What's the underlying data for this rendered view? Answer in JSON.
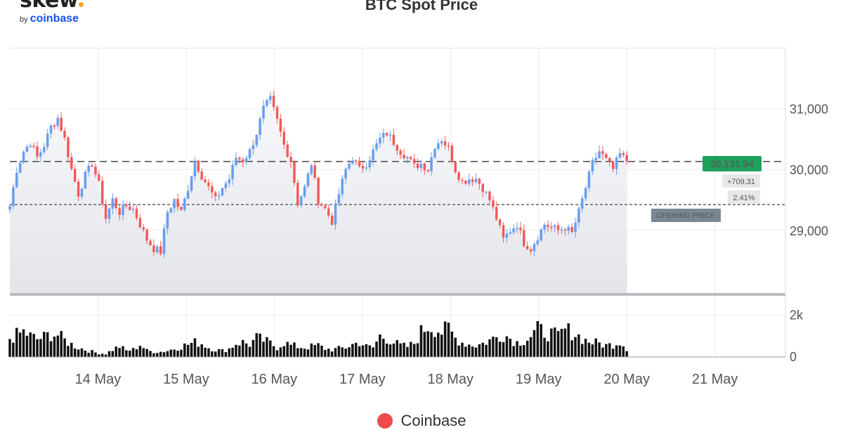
{
  "logo": {
    "wordmark": "skew",
    "byline": "by",
    "brand": "coinbase",
    "dot_color": "#f5a623",
    "text": "skew. by coinbase"
  },
  "title": "BTC Spot Price",
  "legend": {
    "label": "Coinbase",
    "color": "#f04b4b"
  },
  "colors": {
    "up": "#6a9ef0",
    "down": "#f05b5b",
    "volume": "#111111",
    "price_box": "#1fa05b",
    "opening_box": "#7a8893"
  },
  "chart_data": {
    "type": "candlestick",
    "title": "BTC Spot Price",
    "interval": "hourly",
    "x_ticks": [
      "14 May",
      "15 May",
      "16 May",
      "17 May",
      "18 May",
      "19 May",
      "20 May",
      "21 May"
    ],
    "price_axis": {
      "ticks": [
        "31,000",
        "30,000",
        "29,000"
      ],
      "tick_values": [
        31000,
        30000,
        29000
      ],
      "range": [
        27970,
        32000
      ]
    },
    "volume_axis": {
      "ticks": [
        "2k",
        "0"
      ],
      "tick_values": [
        2000,
        0
      ],
      "range": [
        0,
        2800
      ]
    },
    "current_price": {
      "label": "30,131.94",
      "value": 30131.94
    },
    "change": {
      "absolute": "+709.31",
      "percent": "2.41%"
    },
    "opening_price": {
      "label": "OPENING PRICE",
      "value": 29422.63
    },
    "anchors": [
      [
        0,
        29400
      ],
      [
        1,
        30000
      ],
      [
        2,
        30300
      ],
      [
        3,
        30450
      ],
      [
        4,
        30200
      ],
      [
        5,
        30400
      ],
      [
        6,
        30700
      ],
      [
        7,
        30850
      ],
      [
        8,
        30500
      ],
      [
        9,
        30000
      ],
      [
        10,
        29600
      ],
      [
        11,
        29900
      ],
      [
        12,
        30100
      ],
      [
        13,
        29750
      ],
      [
        14,
        29200
      ],
      [
        15,
        29500
      ],
      [
        16,
        29300
      ],
      [
        17,
        29400
      ],
      [
        18,
        29350
      ],
      [
        19,
        29100
      ],
      [
        20,
        28850
      ],
      [
        21,
        28700
      ],
      [
        22,
        28650
      ],
      [
        23,
        29300
      ],
      [
        24,
        29500
      ],
      [
        25,
        29300
      ],
      [
        26,
        29700
      ],
      [
        27,
        30150
      ],
      [
        28,
        29900
      ],
      [
        29,
        29700
      ],
      [
        30,
        29500
      ],
      [
        31,
        29700
      ],
      [
        32,
        29850
      ],
      [
        33,
        30200
      ],
      [
        34,
        30150
      ],
      [
        35,
        30300
      ],
      [
        36,
        30600
      ],
      [
        37,
        31000
      ],
      [
        38,
        31150
      ],
      [
        39,
        30800
      ],
      [
        40,
        30400
      ],
      [
        41,
        30150
      ],
      [
        42,
        29450
      ],
      [
        43,
        29700
      ],
      [
        44,
        30100
      ],
      [
        45,
        29500
      ],
      [
        46,
        29350
      ],
      [
        47,
        29150
      ],
      [
        48,
        29600
      ],
      [
        49,
        30000
      ],
      [
        50,
        30200
      ],
      [
        51,
        30000
      ],
      [
        52,
        30100
      ],
      [
        53,
        30300
      ],
      [
        54,
        30500
      ],
      [
        55,
        30600
      ],
      [
        56,
        30450
      ],
      [
        57,
        30300
      ],
      [
        58,
        30200
      ],
      [
        59,
        30050
      ],
      [
        60,
        30100
      ],
      [
        61,
        30000
      ],
      [
        62,
        30400
      ],
      [
        63,
        30500
      ],
      [
        64,
        30350
      ],
      [
        65,
        30000
      ],
      [
        66,
        29800
      ],
      [
        67,
        29850
      ],
      [
        68,
        29850
      ],
      [
        69,
        29700
      ],
      [
        70,
        29500
      ],
      [
        71,
        29200
      ],
      [
        72,
        28850
      ],
      [
        73,
        29000
      ],
      [
        74,
        29100
      ],
      [
        75,
        28800
      ],
      [
        76,
        28700
      ],
      [
        77,
        28900
      ],
      [
        78,
        29100
      ],
      [
        79,
        29050
      ],
      [
        80,
        29000
      ],
      [
        81,
        29050
      ],
      [
        82,
        28950
      ],
      [
        83,
        29300
      ],
      [
        84,
        29700
      ],
      [
        85,
        30100
      ],
      [
        86,
        30300
      ],
      [
        87,
        30150
      ],
      [
        88,
        30000
      ],
      [
        89,
        30250
      ],
      [
        90,
        30132
      ]
    ],
    "volume_anchors": [
      [
        0,
        900
      ],
      [
        1,
        1050
      ],
      [
        2,
        1200
      ],
      [
        3,
        1000
      ],
      [
        4,
        850
      ],
      [
        5,
        950
      ],
      [
        6,
        1100
      ],
      [
        7,
        1050
      ],
      [
        8,
        800
      ],
      [
        9,
        600
      ],
      [
        10,
        450
      ],
      [
        11,
        350
      ],
      [
        12,
        250
      ],
      [
        13,
        180
      ],
      [
        14,
        150
      ],
      [
        15,
        350
      ],
      [
        16,
        500
      ],
      [
        17,
        300
      ],
      [
        18,
        350
      ],
      [
        19,
        600
      ],
      [
        20,
        300
      ],
      [
        21,
        250
      ],
      [
        22,
        250
      ],
      [
        23,
        300
      ],
      [
        24,
        400
      ],
      [
        25,
        500
      ],
      [
        26,
        600
      ],
      [
        27,
        700
      ],
      [
        28,
        650
      ],
      [
        29,
        450
      ],
      [
        30,
        350
      ],
      [
        31,
        300
      ],
      [
        32,
        400
      ],
      [
        33,
        650
      ],
      [
        34,
        700
      ],
      [
        35,
        600
      ],
      [
        36,
        900
      ],
      [
        37,
        800
      ],
      [
        38,
        650
      ],
      [
        39,
        450
      ],
      [
        40,
        700
      ],
      [
        41,
        550
      ],
      [
        42,
        500
      ],
      [
        43,
        450
      ],
      [
        44,
        500
      ],
      [
        45,
        550
      ],
      [
        46,
        400
      ],
      [
        47,
        350
      ],
      [
        48,
        400
      ],
      [
        49,
        450
      ],
      [
        50,
        600
      ],
      [
        51,
        700
      ],
      [
        52,
        500
      ],
      [
        53,
        450
      ],
      [
        54,
        1000
      ],
      [
        55,
        900
      ],
      [
        56,
        700
      ],
      [
        57,
        550
      ],
      [
        58,
        500
      ],
      [
        59,
        650
      ],
      [
        60,
        1200
      ],
      [
        61,
        1500
      ],
      [
        62,
        1400
      ],
      [
        63,
        1200
      ],
      [
        64,
        1350
      ],
      [
        65,
        900
      ],
      [
        66,
        700
      ],
      [
        67,
        600
      ],
      [
        68,
        550
      ],
      [
        69,
        650
      ],
      [
        70,
        800
      ],
      [
        71,
        950
      ],
      [
        72,
        1100
      ],
      [
        73,
        900
      ],
      [
        74,
        700
      ],
      [
        75,
        800
      ],
      [
        76,
        1000
      ],
      [
        77,
        1300
      ],
      [
        78,
        1200
      ],
      [
        79,
        1100
      ],
      [
        80,
        1000
      ],
      [
        81,
        1300
      ],
      [
        82,
        1200
      ],
      [
        83,
        1000
      ],
      [
        84,
        800
      ],
      [
        85,
        700
      ],
      [
        86,
        650
      ],
      [
        87,
        550
      ],
      [
        88,
        600
      ],
      [
        89,
        750
      ],
      [
        90,
        400
      ]
    ],
    "grid": true,
    "legend_position": "bottom-center",
    "series": [
      {
        "name": "Coinbase"
      }
    ]
  }
}
